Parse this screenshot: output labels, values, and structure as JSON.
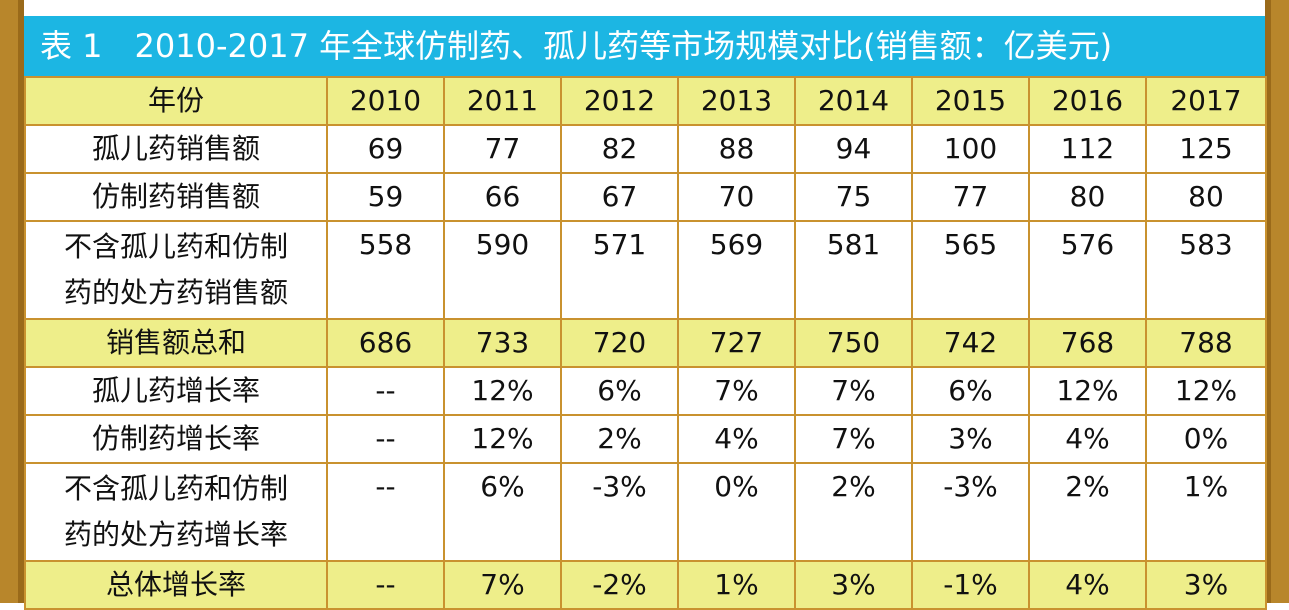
{
  "title": "表 1　2010-2017 年全球仿制药、孤儿药等市场规模对比(销售额：亿美元)",
  "header": {
    "label": "年份",
    "years": [
      "2010",
      "2011",
      "2012",
      "2013",
      "2014",
      "2015",
      "2016",
      "2017"
    ]
  },
  "rows": [
    {
      "label": "孤儿药销售额",
      "values": [
        "69",
        "77",
        "82",
        "88",
        "94",
        "100",
        "112",
        "125"
      ]
    },
    {
      "label": "仿制药销售额",
      "values": [
        "59",
        "66",
        "67",
        "70",
        "75",
        "77",
        "80",
        "80"
      ]
    },
    {
      "label_line1": "不含孤儿药和仿制",
      "label_line2": "药的处方药销售额",
      "values": [
        "558",
        "590",
        "571",
        "569",
        "581",
        "565",
        "576",
        "583"
      ]
    },
    {
      "label": "销售额总和",
      "values": [
        "686",
        "733",
        "720",
        "727",
        "750",
        "742",
        "768",
        "788"
      ]
    },
    {
      "label": "孤儿药增长率",
      "values": [
        "--",
        "12%",
        "6%",
        "7%",
        "7%",
        "6%",
        "12%",
        "12%"
      ]
    },
    {
      "label": "仿制药增长率",
      "values": [
        "--",
        "12%",
        "2%",
        "4%",
        "7%",
        "3%",
        "4%",
        "0%"
      ]
    },
    {
      "label_line1": "不含孤儿药和仿制",
      "label_line2": "药的处方药增长率",
      "values": [
        "--",
        "6%",
        "-3%",
        "0%",
        "2%",
        "-3%",
        "2%",
        "1%"
      ]
    },
    {
      "label": "总体增长率",
      "values": [
        "--",
        "7%",
        "-2%",
        "1%",
        "3%",
        "-1%",
        "4%",
        "3%"
      ]
    }
  ],
  "colors": {
    "title_background": "#1cb6e3",
    "highlight_row": "#eeee8a",
    "border": "#c9922f",
    "side_bar": "#b8862b"
  }
}
